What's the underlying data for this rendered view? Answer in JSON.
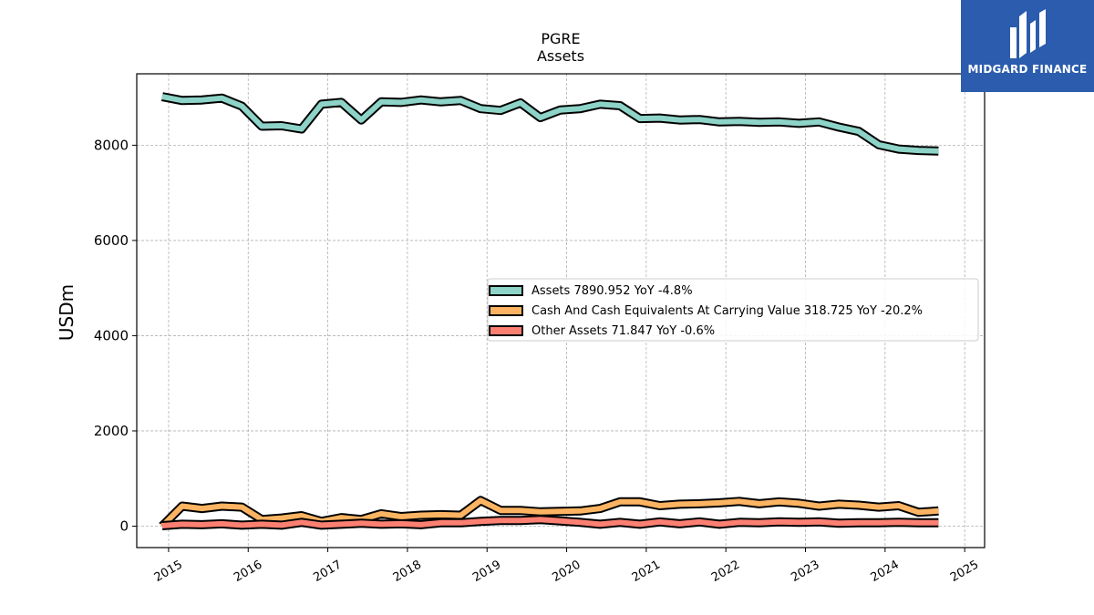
{
  "brand": {
    "name": "MIDGARD FINANCE",
    "color": "#2b5cad"
  },
  "chart_data": {
    "type": "line",
    "title": "PGRE",
    "subtitle": "Assets",
    "xlabel": "",
    "ylabel": "USDm",
    "x_ticks": [
      "2015",
      "2016",
      "2017",
      "2018",
      "2019",
      "2020",
      "2021",
      "2022",
      "2023",
      "2024",
      "2025"
    ],
    "y_ticks": [
      "0",
      "2000",
      "4000",
      "6000",
      "8000"
    ],
    "xlim": [
      2014.6,
      2025.25
    ],
    "ylim": [
      -450,
      9500
    ],
    "grid": true,
    "legend_position": "center-right",
    "x": [
      2014.92,
      2015.17,
      2015.42,
      2015.67,
      2015.92,
      2016.17,
      2016.42,
      2016.67,
      2016.92,
      2017.17,
      2017.42,
      2017.67,
      2017.92,
      2018.17,
      2018.42,
      2018.67,
      2018.92,
      2019.17,
      2019.42,
      2019.67,
      2019.92,
      2020.17,
      2020.42,
      2020.67,
      2020.92,
      2021.17,
      2021.42,
      2021.67,
      2021.92,
      2022.17,
      2022.42,
      2022.67,
      2022.92,
      2023.17,
      2023.42,
      2023.67,
      2023.92,
      2024.17,
      2024.42,
      2024.67
    ],
    "series": [
      {
        "name": "Assets",
        "legend_label": "Assets  7890.952 YoY -4.8%",
        "color": "#8dd3c7",
        "values": [
          9020,
          8940,
          8950,
          8990,
          8820,
          8400,
          8410,
          8340,
          8860,
          8900,
          8530,
          8910,
          8900,
          8950,
          8910,
          8940,
          8770,
          8730,
          8890,
          8580,
          8740,
          8770,
          8860,
          8830,
          8560,
          8570,
          8530,
          8540,
          8490,
          8500,
          8480,
          8490,
          8460,
          8490,
          8380,
          8290,
          8010,
          7920,
          7890,
          7880
        ]
      },
      {
        "name": "Cash And Cash Equivalents At Carrying Value",
        "legend_label": "Cash And Cash Equivalents At Carrying Value  318.725 YoY -20.2%",
        "color": "#fdb462",
        "values": [
          0,
          420,
          370,
          420,
          400,
          140,
          170,
          220,
          100,
          180,
          140,
          260,
          200,
          230,
          240,
          230,
          540,
          330,
          330,
          300,
          310,
          320,
          370,
          510,
          510,
          430,
          460,
          470,
          490,
          520,
          470,
          510,
          480,
          420,
          460,
          440,
          400,
          430,
          290,
          320
        ]
      },
      {
        "name": "Other Assets",
        "legend_label": "Other Assets  71.847 YoY -0.6%",
        "color": "#fb8072",
        "values": [
          10,
          40,
          30,
          50,
          20,
          40,
          20,
          80,
          20,
          40,
          60,
          40,
          50,
          30,
          70,
          70,
          100,
          120,
          120,
          140,
          110,
          80,
          40,
          80,
          40,
          90,
          50,
          90,
          40,
          80,
          70,
          90,
          80,
          90,
          60,
          70,
          70,
          80,
          70,
          72
        ]
      }
    ]
  }
}
